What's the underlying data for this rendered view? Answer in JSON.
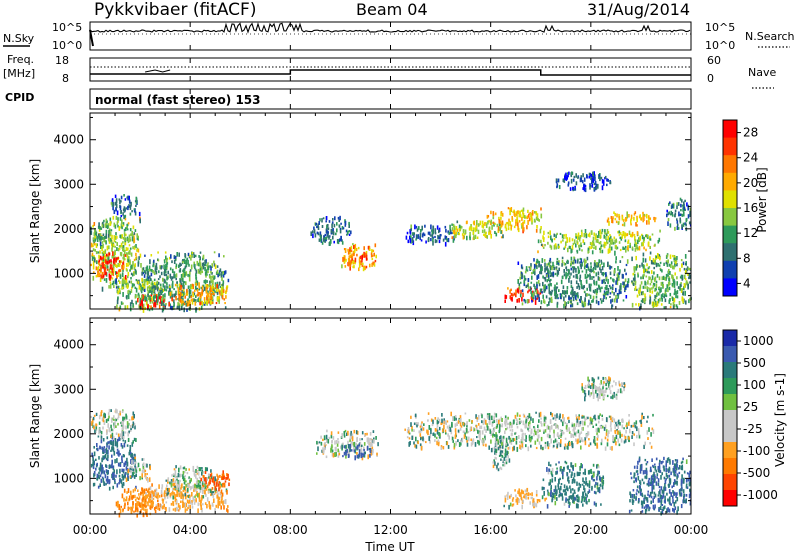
{
  "header": {
    "title": "Pykkvibaer (fitACF)",
    "beam": "Beam 04",
    "date": "31/Aug/2014"
  },
  "panel_nsky": {
    "label": "N.Sky",
    "right_label": "N.Search",
    "left_ticks": [
      "10^5",
      "10^0"
    ],
    "right_ticks": [
      "10^5",
      "10^0"
    ]
  },
  "panel_freq": {
    "label_top": "Freq.",
    "label_unit": "[MHz]",
    "cpid_label": "CPID",
    "left_ticks": [
      "18",
      "8"
    ],
    "right_ticks": [
      "60",
      "0"
    ],
    "right_label": "Nave"
  },
  "cpid_text": "normal (fast stereo) 153",
  "colorbar_power": {
    "label": "Power [dB]",
    "ticks": [
      "28",
      "24",
      "20",
      "16",
      "12",
      "8",
      "4"
    ],
    "colors": [
      "#ff0000",
      "#ff3300",
      "#ff7700",
      "#ffaa00",
      "#e0e000",
      "#88c840",
      "#2e9a5a",
      "#2e7070",
      "#1040b0",
      "#0000ff"
    ]
  },
  "colorbar_velocity": {
    "label": "Velocity [m s-1]",
    "ticks": [
      "1000",
      "500",
      "100",
      "25",
      "-25",
      "-100",
      "-500",
      "-1000"
    ],
    "colors": [
      "#1a2aa8",
      "#3a5ab0",
      "#2a7a7a",
      "#2e9a5a",
      "#70c040",
      "#c8c8c8",
      "#c8c8c8",
      "#ffa020",
      "#ff7a00",
      "#ff4400",
      "#ff0000"
    ]
  },
  "chart_data": [
    {
      "type": "heatmap",
      "name": "power",
      "ylabel": "Slant Range [km]",
      "yticks": [
        1000,
        2000,
        3000,
        4000
      ],
      "ylim": [
        200,
        4600
      ],
      "xlim_hours": [
        0,
        24
      ],
      "colorbar_range": [
        0,
        30
      ],
      "regions": [
        {
          "t0": 0.0,
          "t1": 2.0,
          "r0": 700,
          "r1": 2300,
          "v": 14
        },
        {
          "t0": 0.2,
          "t1": 1.4,
          "r0": 900,
          "r1": 1500,
          "v": 26
        },
        {
          "t0": 0.0,
          "t1": 0.9,
          "r0": 1700,
          "r1": 2200,
          "v": 10
        },
        {
          "t0": 1.0,
          "t1": 3.0,
          "r0": 200,
          "r1": 900,
          "v": 12
        },
        {
          "t0": 1.8,
          "t1": 3.0,
          "r0": 250,
          "r1": 550,
          "v": 28
        },
        {
          "t0": 2.0,
          "t1": 5.5,
          "r0": 200,
          "r1": 1500,
          "v": 10
        },
        {
          "t0": 3.0,
          "t1": 5.5,
          "r0": 300,
          "r1": 800,
          "v": 20
        },
        {
          "t0": 0.8,
          "t1": 2.0,
          "r0": 2300,
          "r1": 2800,
          "v": 6
        },
        {
          "t0": 8.8,
          "t1": 10.4,
          "r0": 1700,
          "r1": 2300,
          "v": 7
        },
        {
          "t0": 10.0,
          "t1": 11.4,
          "r0": 1100,
          "r1": 1700,
          "v": 20
        },
        {
          "t0": 10.4,
          "t1": 11.1,
          "r0": 1300,
          "r1": 1500,
          "v": 26
        },
        {
          "t0": 12.5,
          "t1": 14.6,
          "r0": 1700,
          "r1": 2100,
          "v": 6
        },
        {
          "t0": 14.2,
          "t1": 16.5,
          "r0": 1800,
          "r1": 2200,
          "v": 15
        },
        {
          "t0": 15.8,
          "t1": 18.0,
          "r0": 2000,
          "r1": 2500,
          "v": 18
        },
        {
          "t0": 17.8,
          "t1": 22.8,
          "r0": 1500,
          "r1": 2000,
          "v": 14
        },
        {
          "t0": 20.5,
          "t1": 22.6,
          "r0": 2100,
          "r1": 2400,
          "v": 18
        },
        {
          "t0": 16.5,
          "t1": 18.0,
          "r0": 400,
          "r1": 700,
          "v": 27
        },
        {
          "t0": 17.0,
          "t1": 21.5,
          "r0": 300,
          "r1": 1400,
          "v": 9
        },
        {
          "t0": 21.6,
          "t1": 24.0,
          "r0": 250,
          "r1": 1500,
          "v": 12
        },
        {
          "t0": 18.5,
          "t1": 20.8,
          "r0": 2900,
          "r1": 3300,
          "v": 4
        },
        {
          "t0": 23.0,
          "t1": 24.0,
          "r0": 2000,
          "r1": 2700,
          "v": 8
        }
      ]
    },
    {
      "type": "heatmap",
      "name": "velocity",
      "ylabel": "Slant Range [km]",
      "yticks": [
        1000,
        2000,
        3000,
        4000
      ],
      "ylim": [
        200,
        4600
      ],
      "xlim_hours": [
        0,
        24
      ],
      "colorbar_range": [
        -1000,
        1000
      ],
      "regions": [
        {
          "t0": 0.0,
          "t1": 1.8,
          "r0": 800,
          "r1": 2000,
          "v": 300
        },
        {
          "t0": 0.0,
          "t1": 1.8,
          "r0": 1900,
          "r1": 2600,
          "v": 0
        },
        {
          "t0": 1.4,
          "t1": 2.4,
          "r0": 1000,
          "r1": 1500,
          "v": 0
        },
        {
          "t0": 1.0,
          "t1": 3.0,
          "r0": 200,
          "r1": 800,
          "v": -300
        },
        {
          "t0": 2.0,
          "t1": 5.5,
          "r0": 300,
          "r1": 900,
          "v": -150
        },
        {
          "t0": 3.0,
          "t1": 5.2,
          "r0": 600,
          "r1": 1300,
          "v": 0
        },
        {
          "t0": 4.4,
          "t1": 5.6,
          "r0": 800,
          "r1": 1200,
          "v": -600
        },
        {
          "t0": 9.0,
          "t1": 11.5,
          "r0": 1500,
          "r1": 2100,
          "v": 0
        },
        {
          "t0": 10.0,
          "t1": 11.2,
          "r0": 1500,
          "r1": 1800,
          "v": 400
        },
        {
          "t0": 12.5,
          "t1": 22.5,
          "r0": 1700,
          "r1": 2500,
          "v": 0
        },
        {
          "t0": 16.5,
          "t1": 18.2,
          "r0": 400,
          "r1": 800,
          "v": -150
        },
        {
          "t0": 18.0,
          "t1": 20.5,
          "r0": 400,
          "r1": 1400,
          "v": 200
        },
        {
          "t0": 21.5,
          "t1": 24.0,
          "r0": 250,
          "r1": 1500,
          "v": 300
        },
        {
          "t0": 19.5,
          "t1": 21.5,
          "r0": 2800,
          "r1": 3300,
          "v": 0
        },
        {
          "t0": 16.0,
          "t1": 16.8,
          "r0": 1200,
          "r1": 2000,
          "v": 60
        }
      ]
    }
  ],
  "xaxis": {
    "label": "Time UT",
    "ticks": [
      "00:00",
      "04:00",
      "08:00",
      "12:00",
      "16:00",
      "20:00",
      "00:00"
    ]
  }
}
